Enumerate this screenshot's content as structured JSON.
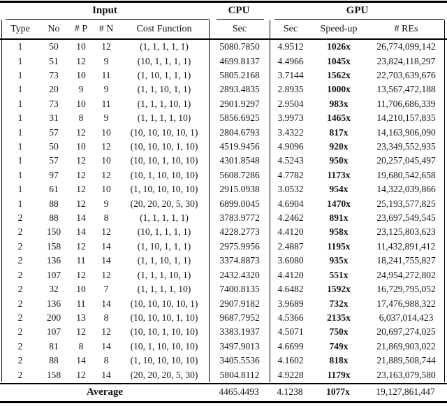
{
  "table": {
    "group_headers": {
      "input": "Input",
      "cpu": "CPU",
      "gpu": "GPU"
    },
    "columns": {
      "type": "Type",
      "no": "No",
      "p": "# P",
      "n": "# N",
      "cost_function": "Cost Function",
      "cpu_sec": "Sec",
      "gpu_sec": "Sec",
      "speedup": "Speed-up",
      "res": "# REs"
    },
    "rows": [
      [
        "1",
        "50",
        "10",
        "12",
        "(1, 1, 1, 1, 1)",
        "5080.7850",
        "4.9512",
        "1026x",
        "26,774,099,142"
      ],
      [
        "1",
        "51",
        "12",
        "9",
        "(10, 1, 1, 1, 1)",
        "4699.8137",
        "4.4966",
        "1045x",
        "23,824,118,297"
      ],
      [
        "1",
        "73",
        "10",
        "11",
        "(1, 10, 1, 1, 1)",
        "5805.2168",
        "3.7144",
        "1562x",
        "22,703,639,676"
      ],
      [
        "1",
        "20",
        "9",
        "9",
        "(1, 1, 10, 1, 1)",
        "2893.4835",
        "2.8935",
        "1000x",
        "13,567,472,188"
      ],
      [
        "1",
        "73",
        "10",
        "11",
        "(1, 1, 1, 10, 1)",
        "2901.9297",
        "2.9504",
        "983x",
        "11,706,686,339"
      ],
      [
        "1",
        "31",
        "8",
        "9",
        "(1, 1, 1, 1, 10)",
        "5856.6925",
        "3.9973",
        "1465x",
        "14,210,157,835"
      ],
      [
        "1",
        "57",
        "12",
        "10",
        "(10, 10, 10, 10, 1)",
        "2804.6793",
        "3.4322",
        "817x",
        "14,163,906,090"
      ],
      [
        "1",
        "50",
        "10",
        "12",
        "(10, 10, 10, 1, 10)",
        "4519.9456",
        "4.9096",
        "920x",
        "23,349,552,935"
      ],
      [
        "1",
        "57",
        "12",
        "10",
        "(10, 10, 1, 10, 10)",
        "4301.8548",
        "4.5243",
        "950x",
        "20,257,045,497"
      ],
      [
        "1",
        "97",
        "12",
        "12",
        "(10, 1, 10, 10, 10)",
        "5608.7286",
        "4.7782",
        "1173x",
        "19,680,542,658"
      ],
      [
        "1",
        "61",
        "12",
        "10",
        "(1, 10, 10, 10, 10)",
        "2915.0938",
        "3.0532",
        "954x",
        "14,322,039,866"
      ],
      [
        "1",
        "88",
        "12",
        "9",
        "(20, 20, 20, 5, 30)",
        "6899.0045",
        "4.6904",
        "1470x",
        "25,193,577,825"
      ],
      [
        "2",
        "88",
        "14",
        "8",
        "(1, 1, 1, 1, 1)",
        "3783.9772",
        "4.2462",
        "891x",
        "23,697,549,545"
      ],
      [
        "2",
        "150",
        "14",
        "12",
        "(10, 1, 1, 1, 1)",
        "4228.2773",
        "4.4120",
        "958x",
        "23,125,803,623"
      ],
      [
        "2",
        "158",
        "12",
        "14",
        "(1, 10, 1, 1, 1)",
        "2975.9956",
        "2.4887",
        "1195x",
        "11,432,891,412"
      ],
      [
        "2",
        "136",
        "11",
        "14",
        "(1, 1, 10, 1, 1)",
        "3374.8873",
        "3.6080",
        "935x",
        "18,241,755,827"
      ],
      [
        "2",
        "107",
        "12",
        "12",
        "(1, 1, 1, 10, 1)",
        "2432.4320",
        "4.4120",
        "551x",
        "24,954,272,802"
      ],
      [
        "2",
        "32",
        "10",
        "7",
        "(1, 1, 1, 1, 10)",
        "7400.8135",
        "4.6482",
        "1592x",
        "16,729,795,052"
      ],
      [
        "2",
        "136",
        "11",
        "14",
        "(10, 10, 10, 10, 1)",
        "2907.9182",
        "3.9689",
        "732x",
        "17,476,988,322"
      ],
      [
        "2",
        "200",
        "13",
        "8",
        "(10, 10, 10, 1, 10)",
        "9687.7952",
        "4.5366",
        "2135x",
        "6,037,014,423"
      ],
      [
        "2",
        "107",
        "12",
        "12",
        "(10, 10, 1, 10, 10)",
        "3383.1937",
        "4.5071",
        "750x",
        "20,697,274,025"
      ],
      [
        "2",
        "81",
        "8",
        "14",
        "(10, 1, 10, 10, 10)",
        "3497.9013",
        "4.6699",
        "749x",
        "21,869,903,022"
      ],
      [
        "2",
        "88",
        "14",
        "8",
        "(1, 10, 10, 10, 10)",
        "3405.5536",
        "4.1602",
        "818x",
        "21,889,508,744"
      ],
      [
        "2",
        "158",
        "12",
        "14",
        "(20, 20, 20, 5, 30)",
        "5804.8112",
        "4.9228",
        "1179x",
        "23,163,079,580"
      ]
    ],
    "average": {
      "label": "Average",
      "cpu_sec": "4465.4493",
      "gpu_sec": "4.1238",
      "speedup": "1077x",
      "res": "19,127,861,447"
    }
  }
}
